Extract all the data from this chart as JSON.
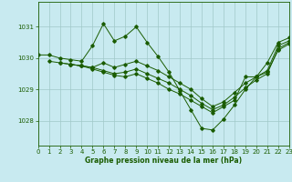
{
  "title": "Graphe pression niveau de la mer (hPa)",
  "bg_color": "#c8eaf0",
  "grid_color": "#a0c8c8",
  "line_color": "#1a5c00",
  "xlim": [
    0,
    23
  ],
  "ylim": [
    1027.2,
    1031.8
  ],
  "yticks": [
    1028,
    1029,
    1030,
    1031
  ],
  "xticks": [
    0,
    1,
    2,
    3,
    4,
    5,
    6,
    7,
    8,
    9,
    10,
    11,
    12,
    13,
    14,
    15,
    16,
    17,
    18,
    19,
    20,
    21,
    22,
    23
  ],
  "series": [
    {
      "x": [
        0,
        1,
        2,
        3,
        4,
        5,
        6,
        7,
        8,
        9,
        10,
        11,
        12,
        13,
        14,
        15,
        16,
        17,
        18,
        19,
        20,
        21,
        22,
        23
      ],
      "y": [
        1030.1,
        1030.1,
        1030.0,
        1029.95,
        1029.9,
        1030.4,
        1031.1,
        1030.55,
        1030.7,
        1031.0,
        1030.5,
        1030.05,
        1029.55,
        1028.95,
        1028.35,
        1027.75,
        1027.7,
        1028.05,
        1028.5,
        1029.0,
        1029.4,
        1029.85,
        1030.5,
        1030.65
      ]
    },
    {
      "x": [
        1,
        2,
        3,
        4,
        5,
        6,
        7,
        8,
        9,
        10,
        11,
        12,
        13,
        14,
        15,
        16,
        17,
        18,
        19,
        20,
        21,
        22,
        23
      ],
      "y": [
        1029.9,
        1029.85,
        1029.8,
        1029.75,
        1029.7,
        1029.85,
        1029.7,
        1029.8,
        1029.9,
        1029.75,
        1029.6,
        1029.4,
        1029.2,
        1029.0,
        1028.7,
        1028.45,
        1028.6,
        1028.9,
        1029.2,
        1029.4,
        1029.6,
        1030.4,
        1030.55
      ]
    },
    {
      "x": [
        2,
        3,
        4,
        5,
        6,
        7,
        8,
        9,
        10,
        11,
        12,
        13,
        14,
        15,
        16,
        17,
        18,
        19,
        20,
        21,
        22,
        23
      ],
      "y": [
        1029.85,
        1029.8,
        1029.75,
        1029.7,
        1029.6,
        1029.5,
        1029.55,
        1029.65,
        1029.5,
        1029.35,
        1029.2,
        1029.0,
        1028.8,
        1028.55,
        1028.35,
        1028.5,
        1028.75,
        1029.05,
        1029.3,
        1029.5,
        1030.3,
        1030.5
      ]
    },
    {
      "x": [
        3,
        4,
        5,
        6,
        7,
        8,
        9,
        10,
        11,
        12,
        13,
        14,
        15,
        16,
        17,
        18,
        19,
        20,
        21,
        22,
        23
      ],
      "y": [
        1029.8,
        1029.75,
        1029.65,
        1029.55,
        1029.45,
        1029.4,
        1029.5,
        1029.35,
        1029.2,
        1029.0,
        1028.85,
        1028.65,
        1028.45,
        1028.25,
        1028.45,
        1028.65,
        1029.4,
        1029.4,
        1029.55,
        1030.25,
        1030.45
      ]
    }
  ]
}
